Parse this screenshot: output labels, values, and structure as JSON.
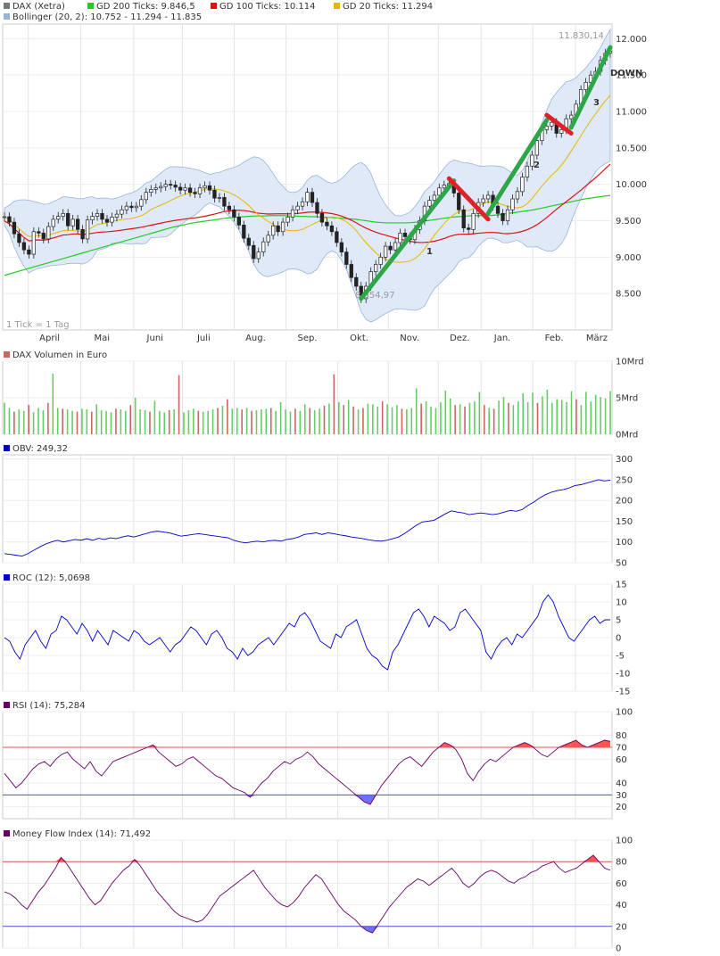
{
  "colors": {
    "up": "#2a2a2a",
    "green_ma": "#22cc22",
    "red_ma": "#dd1111",
    "yellow_ma": "#e6b800",
    "bollinger_fill": "#dfe9f7",
    "bollinger_line": "#9ab4d8",
    "green_annot": "#2ca646",
    "red_annot": "#e0212a",
    "line_blue": "#0000cc",
    "line_purple": "#660066",
    "vol_green": "#66cc66",
    "vol_red": "#cc6666",
    "ob_fill": "#ff3333",
    "os_fill": "#5555ff"
  },
  "legend": {
    "dax": "DAX (Xetra)",
    "gd200": "GD 200 Ticks: 9.846,5",
    "gd100": "GD 100 Ticks: 10.114",
    "gd20": "GD 20 Ticks: 11.294",
    "bollinger": "Bollinger (20, 2): 10.752 - 11.294 - 11.835"
  },
  "chart_data": [
    {
      "id": "price",
      "type": "line",
      "title": "DAX (Xetra)",
      "ylim": [
        8000,
        12200
      ],
      "y_ticks": [
        {
          "v": 12000,
          "label": "12.000"
        },
        {
          "v": 11500,
          "label": "11.500"
        },
        {
          "v": 11000,
          "label": "11.000"
        },
        {
          "v": 10500,
          "label": "10.500"
        },
        {
          "v": 10000,
          "label": "10.000"
        },
        {
          "v": 9500,
          "label": "9.500"
        },
        {
          "v": 9000,
          "label": "9.000"
        },
        {
          "v": 8500,
          "label": "8.500"
        }
      ],
      "x_labels": [
        "April",
        "Mai",
        "Juni",
        "Juli",
        "Aug.",
        "Sep.",
        "Okt.",
        "Nov.",
        "Dez.",
        "Jan.",
        "Feb.",
        "März"
      ],
      "x_label_t": [
        0.077,
        0.163,
        0.25,
        0.33,
        0.415,
        0.5,
        0.585,
        0.668,
        0.75,
        0.82,
        0.905,
        0.975
      ],
      "max_label": "11.830,14",
      "min_label": "8.354,97",
      "tick_note": "1 Tick = 1 Tag",
      "annotations": [
        "DOWN",
        "1",
        "2",
        "3"
      ],
      "series_close": [
        9555,
        9480,
        9320,
        9200,
        9100,
        9040,
        9350,
        9330,
        9250,
        9420,
        9520,
        9560,
        9600,
        9430,
        9520,
        9380,
        9250,
        9510,
        9560,
        9600,
        9520,
        9480,
        9550,
        9590,
        9650,
        9700,
        9680,
        9700,
        9790,
        9890,
        9930,
        9950,
        9970,
        10000,
        9990,
        9960,
        9920,
        9950,
        9890,
        9870,
        9950,
        9980,
        9920,
        9810,
        9820,
        9700,
        9650,
        9550,
        9440,
        9260,
        9160,
        8980,
        9070,
        9210,
        9300,
        9430,
        9350,
        9480,
        9550,
        9650,
        9700,
        9760,
        9890,
        9750,
        9600,
        9480,
        9430,
        9350,
        9200,
        9070,
        8900,
        8720,
        8600,
        8430,
        8600,
        8800,
        8900,
        9000,
        9150,
        9100,
        9200,
        9330,
        9280,
        9240,
        9380,
        9500,
        9700,
        9780,
        9850,
        9950,
        9990,
        10010,
        9880,
        9650,
        9400,
        9380,
        9600,
        9750,
        9800,
        9850,
        9700,
        9600,
        9500,
        9650,
        9800,
        9900,
        10100,
        10250,
        10400,
        10600,
        10750,
        10800,
        10850,
        10700,
        10750,
        10900,
        10950,
        11100,
        11300,
        11400,
        11500,
        11550,
        11700,
        11800,
        11830
      ],
      "series_gd200": [
        8750,
        8770,
        8790,
        8810,
        8830,
        8850,
        8870,
        8890,
        8910,
        8930,
        8950,
        8970,
        8990,
        9010,
        9030,
        9050,
        9070,
        9090,
        9110,
        9130,
        9150,
        9170,
        9190,
        9210,
        9230,
        9250,
        9270,
        9290,
        9310,
        9330,
        9350,
        9370,
        9390,
        9410,
        9425,
        9440,
        9455,
        9470,
        9480,
        9490,
        9500,
        9510,
        9520,
        9530,
        9540,
        9545,
        9550,
        9555,
        9560,
        9565,
        9565,
        9565,
        9570,
        9570,
        9570,
        9570,
        9565,
        9565,
        9560,
        9560,
        9555,
        9555,
        9550,
        9550,
        9545,
        9540,
        9535,
        9530,
        9525,
        9520,
        9510,
        9500,
        9490,
        9480,
        9475,
        9470,
        9470,
        9470,
        9470,
        9470,
        9475,
        9480,
        9490,
        9500,
        9510,
        9520,
        9530,
        9540,
        9550,
        9555,
        9560,
        9565,
        9570,
        9570,
        9570,
        9570,
        9575,
        9580,
        9590,
        9600,
        9610,
        9620,
        9630,
        9640,
        9650,
        9665,
        9680,
        9695,
        9710,
        9725,
        9740,
        9755,
        9770,
        9785,
        9800,
        9810,
        9820,
        9830,
        9840,
        9846
      ]
    },
    {
      "id": "volume",
      "type": "bar",
      "title": "DAX Volumen in Euro",
      "ylim": [
        0,
        10
      ],
      "y_ticks": [
        {
          "v": 10,
          "label": "10Mrd"
        },
        {
          "v": 5,
          "label": "5Mrd"
        },
        {
          "v": 0,
          "label": "0Mrd"
        }
      ],
      "values": [
        4.3,
        3.6,
        3.1,
        3.4,
        3.2,
        4.0,
        3.0,
        3.6,
        3.3,
        4.3,
        8.3,
        3.6,
        3.5,
        3.4,
        3.2,
        3.1,
        3.5,
        3.4,
        3.1,
        4.1,
        3.3,
        3.2,
        3.0,
        3.5,
        3.4,
        3.2,
        4.0,
        5.0,
        3.4,
        3.3,
        3.1,
        4.6,
        3.2,
        3.0,
        3.3,
        3.4,
        8.1,
        3.0,
        3.3,
        3.5,
        3.2,
        3.1,
        3.2,
        3.4,
        3.6,
        3.9,
        4.8,
        3.5,
        3.6,
        3.4,
        3.6,
        3.2,
        3.3,
        3.4,
        3.5,
        3.6,
        3.2,
        4.4,
        3.4,
        3.1,
        3.5,
        3.2,
        4.1,
        3.6,
        3.3,
        3.5,
        3.9,
        4.2,
        8.2,
        4.4,
        4.0,
        4.7,
        3.8,
        3.4,
        3.6,
        4.2,
        4.1,
        3.8,
        4.5,
        4.1,
        3.7,
        4.0,
        3.5,
        3.4,
        3.6,
        6.3,
        4.2,
        4.5,
        3.8,
        3.6,
        4.4,
        6.0,
        4.9,
        4.0,
        4.1,
        3.8,
        4.3,
        4.5,
        5.8,
        4.0,
        3.6,
        3.5,
        4.6,
        5.1,
        4.3,
        4.0,
        4.5,
        5.6,
        4.4,
        5.7,
        4.3,
        5.2,
        6.1,
        4.3,
        4.8,
        4.7,
        4.4,
        5.9,
        4.8,
        4.0,
        5.8,
        4.5,
        5.4,
        5.1,
        4.9,
        5.9
      ],
      "down_days": [
        2,
        5,
        9,
        12,
        15,
        18,
        23,
        26,
        30,
        34,
        36,
        40,
        44,
        46,
        49,
        51,
        55,
        60,
        63,
        66,
        68,
        70,
        72,
        74,
        78,
        82,
        86,
        93,
        95,
        99,
        101,
        104,
        110,
        118
      ]
    },
    {
      "id": "obv",
      "type": "line",
      "title": "OBV: 249,32",
      "ylim": [
        50,
        310
      ],
      "y_ticks": [
        {
          "v": 300,
          "label": "300"
        },
        {
          "v": 250,
          "label": "250"
        },
        {
          "v": 200,
          "label": "200"
        },
        {
          "v": 150,
          "label": "150"
        },
        {
          "v": 100,
          "label": "100"
        },
        {
          "v": 50,
          "label": "50"
        }
      ],
      "values": [
        72,
        70,
        68,
        66,
        72,
        80,
        88,
        95,
        100,
        104,
        100,
        103,
        106,
        104,
        108,
        104,
        109,
        106,
        110,
        108,
        112,
        115,
        112,
        116,
        120,
        124,
        126,
        124,
        122,
        118,
        114,
        116,
        118,
        120,
        118,
        116,
        114,
        112,
        110,
        104,
        100,
        98,
        100,
        102,
        100,
        103,
        104,
        102,
        106,
        108,
        112,
        118,
        120,
        122,
        118,
        122,
        120,
        117,
        115,
        112,
        110,
        108,
        105,
        103,
        102,
        104,
        108,
        112,
        120,
        130,
        140,
        148,
        150,
        152,
        160,
        168,
        175,
        172,
        170,
        166,
        168,
        170,
        168,
        166,
        168,
        172,
        176,
        174,
        178,
        188,
        196,
        206,
        214,
        220,
        224,
        226,
        230,
        236,
        238,
        242,
        246,
        250,
        247,
        249
      ]
    },
    {
      "id": "roc",
      "type": "line",
      "title": "ROC (12): 5,0698",
      "ylim": [
        -15,
        15
      ],
      "y_ticks": [
        {
          "v": 15,
          "label": "15"
        },
        {
          "v": 10,
          "label": "10"
        },
        {
          "v": 5,
          "label": "5"
        },
        {
          "v": 0,
          "label": "0"
        },
        {
          "v": -5,
          "label": "-5"
        },
        {
          "v": -10,
          "label": "-10"
        },
        {
          "v": -15,
          "label": "-15"
        }
      ],
      "values": [
        0,
        -1,
        -4,
        -6,
        -2,
        0,
        2,
        -1,
        -3,
        1,
        2,
        6,
        5,
        3,
        1,
        4,
        2,
        -1,
        2,
        0,
        -2,
        2,
        1,
        0,
        -1,
        2,
        1,
        -1,
        -2,
        -1,
        0,
        -2,
        -4,
        -2,
        -1,
        1,
        3,
        2,
        0,
        -2,
        1,
        2,
        0,
        -3,
        -4,
        -6,
        -3,
        -5,
        -4,
        -2,
        -1,
        0,
        -2,
        0,
        2,
        4,
        3,
        6,
        7,
        5,
        2,
        -1,
        -2,
        -3,
        1,
        0,
        3,
        4,
        5,
        1,
        -3,
        -5,
        -6,
        -8,
        -9,
        -4,
        -2,
        1,
        4,
        7,
        8,
        6,
        3,
        6,
        5,
        4,
        2,
        3,
        7,
        8,
        6,
        4,
        2,
        -4,
        -6,
        -3,
        -1,
        0,
        -2,
        1,
        0,
        2,
        4,
        6,
        10,
        12,
        10,
        6,
        3,
        0,
        -1,
        1,
        3,
        5,
        6,
        4,
        5,
        5
      ]
    },
    {
      "id": "rsi",
      "type": "line",
      "title": "RSI (14): 75,284",
      "ylim": [
        10,
        100
      ],
      "y_ticks": [
        {
          "v": 100,
          "label": "100"
        },
        {
          "v": 80,
          "label": "80"
        },
        {
          "v": 70,
          "label": "70"
        },
        {
          "v": 60,
          "label": "60"
        },
        {
          "v": 40,
          "label": "40"
        },
        {
          "v": 30,
          "label": "30"
        },
        {
          "v": 20,
          "label": "20"
        }
      ],
      "overbought": 70,
      "oversold": 30,
      "values": [
        48,
        42,
        36,
        40,
        46,
        52,
        56,
        58,
        54,
        60,
        64,
        66,
        60,
        56,
        52,
        58,
        50,
        46,
        52,
        58,
        60,
        62,
        64,
        66,
        68,
        70,
        72,
        66,
        62,
        58,
        54,
        56,
        60,
        62,
        58,
        54,
        50,
        46,
        44,
        40,
        36,
        34,
        32,
        28,
        34,
        40,
        44,
        50,
        54,
        58,
        56,
        60,
        62,
        66,
        62,
        56,
        52,
        48,
        44,
        40,
        36,
        32,
        28,
        24,
        22,
        30,
        38,
        44,
        50,
        56,
        60,
        62,
        58,
        54,
        60,
        66,
        70,
        74,
        72,
        68,
        60,
        48,
        42,
        50,
        56,
        60,
        58,
        62,
        66,
        70,
        72,
        74,
        72,
        68,
        64,
        62,
        66,
        70,
        72,
        74,
        76,
        72,
        70,
        72,
        74,
        76,
        75
      ]
    },
    {
      "id": "mfi",
      "type": "line",
      "title": "Money Flow Index (14): 71,492",
      "ylim": [
        0,
        100
      ],
      "y_ticks": [
        {
          "v": 100,
          "label": "100"
        },
        {
          "v": 80,
          "label": "80"
        },
        {
          "v": 60,
          "label": "60"
        },
        {
          "v": 40,
          "label": "40"
        },
        {
          "v": 20,
          "label": "20"
        },
        {
          "v": 0,
          "label": "0"
        }
      ],
      "overbought": 80,
      "oversold": 20,
      "values": [
        52,
        50,
        46,
        40,
        36,
        44,
        52,
        58,
        66,
        74,
        84,
        78,
        70,
        62,
        54,
        46,
        40,
        44,
        52,
        60,
        66,
        72,
        76,
        82,
        76,
        68,
        60,
        52,
        46,
        40,
        34,
        30,
        28,
        26,
        24,
        26,
        32,
        40,
        48,
        52,
        56,
        60,
        64,
        68,
        72,
        64,
        56,
        50,
        44,
        40,
        38,
        42,
        48,
        56,
        62,
        68,
        64,
        56,
        48,
        40,
        34,
        30,
        26,
        20,
        16,
        14,
        22,
        30,
        38,
        44,
        50,
        56,
        60,
        64,
        62,
        58,
        62,
        66,
        70,
        74,
        68,
        60,
        56,
        60,
        66,
        70,
        72,
        70,
        66,
        62,
        60,
        64,
        66,
        70,
        72,
        76,
        78,
        80,
        74,
        70,
        72,
        74,
        78,
        82,
        86,
        80,
        74,
        72
      ]
    }
  ]
}
